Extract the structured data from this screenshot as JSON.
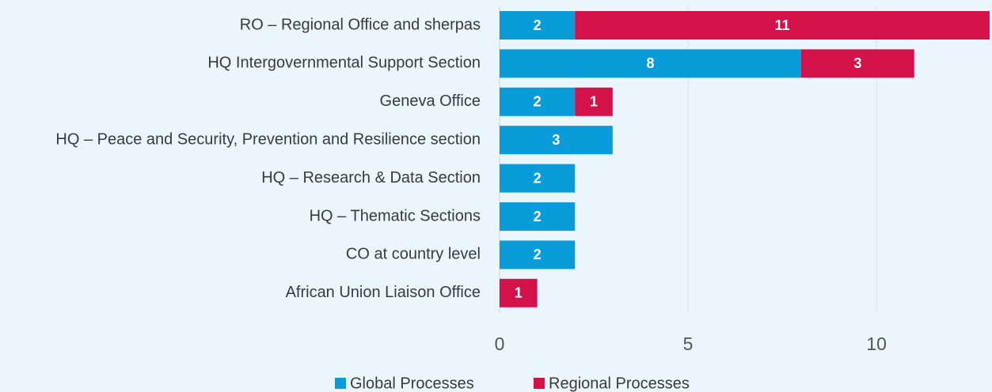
{
  "chart_data": {
    "type": "stacked-barh",
    "categories": [
      "RO – Regional Office and sherpas",
      "HQ Intergovernmental Support Section",
      "Geneva Office",
      "HQ – Peace and Security, Prevention and Resilience section",
      "HQ – Research & Data Section",
      "HQ – Thematic Sections",
      "CO at country level",
      "African Union Liaison Office"
    ],
    "series": [
      {
        "name": "Global Processes",
        "color": "#0a9bd9",
        "values": [
          2,
          8,
          2,
          3,
          2,
          2,
          2,
          0
        ]
      },
      {
        "name": "Regional Processes",
        "color": "#d3124a",
        "values": [
          11,
          3,
          1,
          0,
          0,
          0,
          0,
          1
        ]
      }
    ],
    "xlim": [
      0,
      13
    ],
    "xticks": [
      0,
      5,
      10
    ],
    "grid": true,
    "legend": "bottom"
  }
}
